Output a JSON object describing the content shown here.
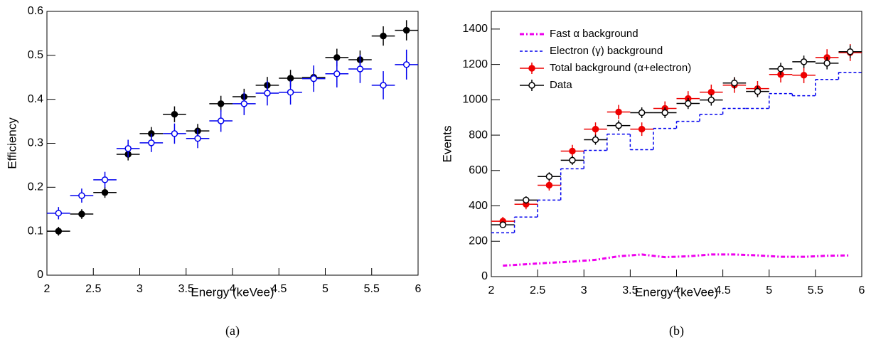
{
  "chart_data": [
    {
      "type": "errorbar",
      "caption": "(a)",
      "x_label": "Energy (keVee)",
      "y_label": "Efficiency",
      "xlim": [
        2,
        6
      ],
      "ylim": [
        0,
        0.6
      ],
      "xticks": [
        2,
        2.5,
        3,
        3.5,
        4,
        4.5,
        5,
        5.5,
        6
      ],
      "yticks": [
        0,
        0.1,
        0.2,
        0.3,
        0.4,
        0.5,
        0.6
      ],
      "x": [
        2.125,
        2.375,
        2.625,
        2.875,
        3.125,
        3.375,
        3.625,
        3.875,
        4.125,
        4.375,
        4.625,
        4.875,
        5.125,
        5.375,
        5.625,
        5.875
      ],
      "xerr": 0.125,
      "series": [
        {
          "color": "#000000",
          "style": "points",
          "marker": "filled",
          "values": [
            0.1,
            0.139,
            0.188,
            0.275,
            0.322,
            0.366,
            0.328,
            0.39,
            0.406,
            0.432,
            0.448,
            0.45,
            0.495,
            0.49,
            0.544,
            0.557
          ],
          "yerr": [
            0.01,
            0.011,
            0.012,
            0.014,
            0.015,
            0.018,
            0.016,
            0.018,
            0.018,
            0.019,
            0.019,
            0.02,
            0.02,
            0.021,
            0.022,
            0.023
          ]
        },
        {
          "color": "#0000ee",
          "style": "points",
          "marker": "open",
          "values": [
            0.141,
            0.181,
            0.217,
            0.288,
            0.301,
            0.322,
            0.311,
            0.351,
            0.39,
            0.414,
            0.416,
            0.447,
            0.458,
            0.469,
            0.432,
            0.479
          ],
          "yerr": [
            0.014,
            0.016,
            0.018,
            0.02,
            0.021,
            0.023,
            0.022,
            0.025,
            0.026,
            0.028,
            0.028,
            0.03,
            0.031,
            0.032,
            0.032,
            0.034
          ]
        }
      ]
    },
    {
      "type": "errorbar",
      "caption": "(b)",
      "x_label": "Energy (keVee)",
      "y_label": "Events",
      "xlim": [
        2,
        6
      ],
      "ylim": [
        0,
        1500
      ],
      "xticks": [
        2,
        2.5,
        3,
        3.5,
        4,
        4.5,
        5,
        5.5,
        6
      ],
      "yticks": [
        0,
        200,
        400,
        600,
        800,
        1000,
        1200,
        1400
      ],
      "legend": "top-left",
      "x": [
        2.125,
        2.375,
        2.625,
        2.875,
        3.125,
        3.375,
        3.625,
        3.875,
        4.125,
        4.375,
        4.625,
        4.875,
        5.125,
        5.375,
        5.625,
        5.875
      ],
      "xerr": 0.125,
      "series": [
        {
          "name": "Fast α background",
          "color": "#ee00ee",
          "style": "dashdot",
          "values": [
            62,
            70,
            78,
            85,
            95,
            115,
            125,
            110,
            115,
            125,
            125,
            120,
            112,
            112,
            118,
            120
          ]
        },
        {
          "name": "Electron (γ) background",
          "color": "#0000ee",
          "style": "step",
          "values": [
            248,
            337,
            433,
            610,
            714,
            806,
            718,
            838,
            878,
            918,
            951,
            951,
            1035,
            1023,
            1115,
            1155
          ]
        },
        {
          "name": "Total background (α+electron)",
          "color": "#ee0000",
          "style": "points",
          "marker": "filled",
          "values": [
            313,
            409,
            517,
            710,
            834,
            931,
            834,
            951,
            1007,
            1043,
            1083,
            1063,
            1143,
            1139,
            1239,
            1267
          ],
          "yerr": [
            25,
            28,
            30,
            35,
            38,
            40,
            38,
            40,
            42,
            43,
            44,
            43,
            45,
            45,
            47,
            48
          ]
        },
        {
          "name": "Data",
          "color": "#000000",
          "style": "points",
          "marker": "open",
          "values": [
            293,
            433,
            566,
            658,
            774,
            854,
            927,
            927,
            979,
            999,
            1095,
            1047,
            1175,
            1215,
            1207,
            1272
          ],
          "yerr": [
            17,
            21,
            24,
            26,
            28,
            29,
            30,
            30,
            31,
            32,
            33,
            32,
            34,
            35,
            35,
            36
          ]
        }
      ]
    }
  ]
}
